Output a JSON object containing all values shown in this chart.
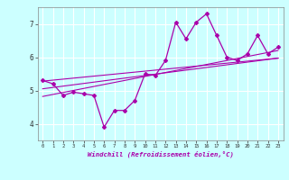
{
  "x": [
    0,
    1,
    2,
    3,
    4,
    5,
    6,
    7,
    8,
    9,
    10,
    11,
    12,
    13,
    14,
    15,
    16,
    17,
    18,
    19,
    20,
    21,
    22,
    23
  ],
  "y_main": [
    5.3,
    5.2,
    4.85,
    4.95,
    4.9,
    4.85,
    3.9,
    4.4,
    4.4,
    4.7,
    5.5,
    5.45,
    5.9,
    7.05,
    6.55,
    7.05,
    7.3,
    6.65,
    6.0,
    5.9,
    6.1,
    6.65,
    6.1,
    6.3
  ],
  "reg1": [
    5.28,
    5.31,
    5.34,
    5.37,
    5.4,
    5.43,
    5.46,
    5.49,
    5.52,
    5.55,
    5.58,
    5.61,
    5.64,
    5.67,
    5.7,
    5.73,
    5.76,
    5.79,
    5.82,
    5.85,
    5.88,
    5.91,
    5.94,
    5.97
  ],
  "reg2": [
    5.05,
    5.09,
    5.13,
    5.17,
    5.21,
    5.25,
    5.29,
    5.33,
    5.37,
    5.41,
    5.45,
    5.49,
    5.53,
    5.57,
    5.61,
    5.65,
    5.69,
    5.73,
    5.77,
    5.81,
    5.85,
    5.89,
    5.93,
    5.97
  ],
  "reg3": [
    4.82,
    4.88,
    4.94,
    5.0,
    5.06,
    5.12,
    5.18,
    5.24,
    5.3,
    5.36,
    5.42,
    5.48,
    5.54,
    5.6,
    5.66,
    5.72,
    5.78,
    5.84,
    5.9,
    5.96,
    6.02,
    6.08,
    6.14,
    6.2
  ],
  "line_color": "#aa00aa",
  "bg_color": "#ccffff",
  "grid_color": "#ffffff",
  "xlabel": "Windchill (Refroidissement éolien,°C)",
  "ylim": [
    3.5,
    7.5
  ],
  "xlim": [
    -0.5,
    23.5
  ],
  "yticks": [
    4,
    5,
    6,
    7
  ],
  "xticks": [
    0,
    1,
    2,
    3,
    4,
    5,
    6,
    7,
    8,
    9,
    10,
    11,
    12,
    13,
    14,
    15,
    16,
    17,
    18,
    19,
    20,
    21,
    22,
    23
  ]
}
